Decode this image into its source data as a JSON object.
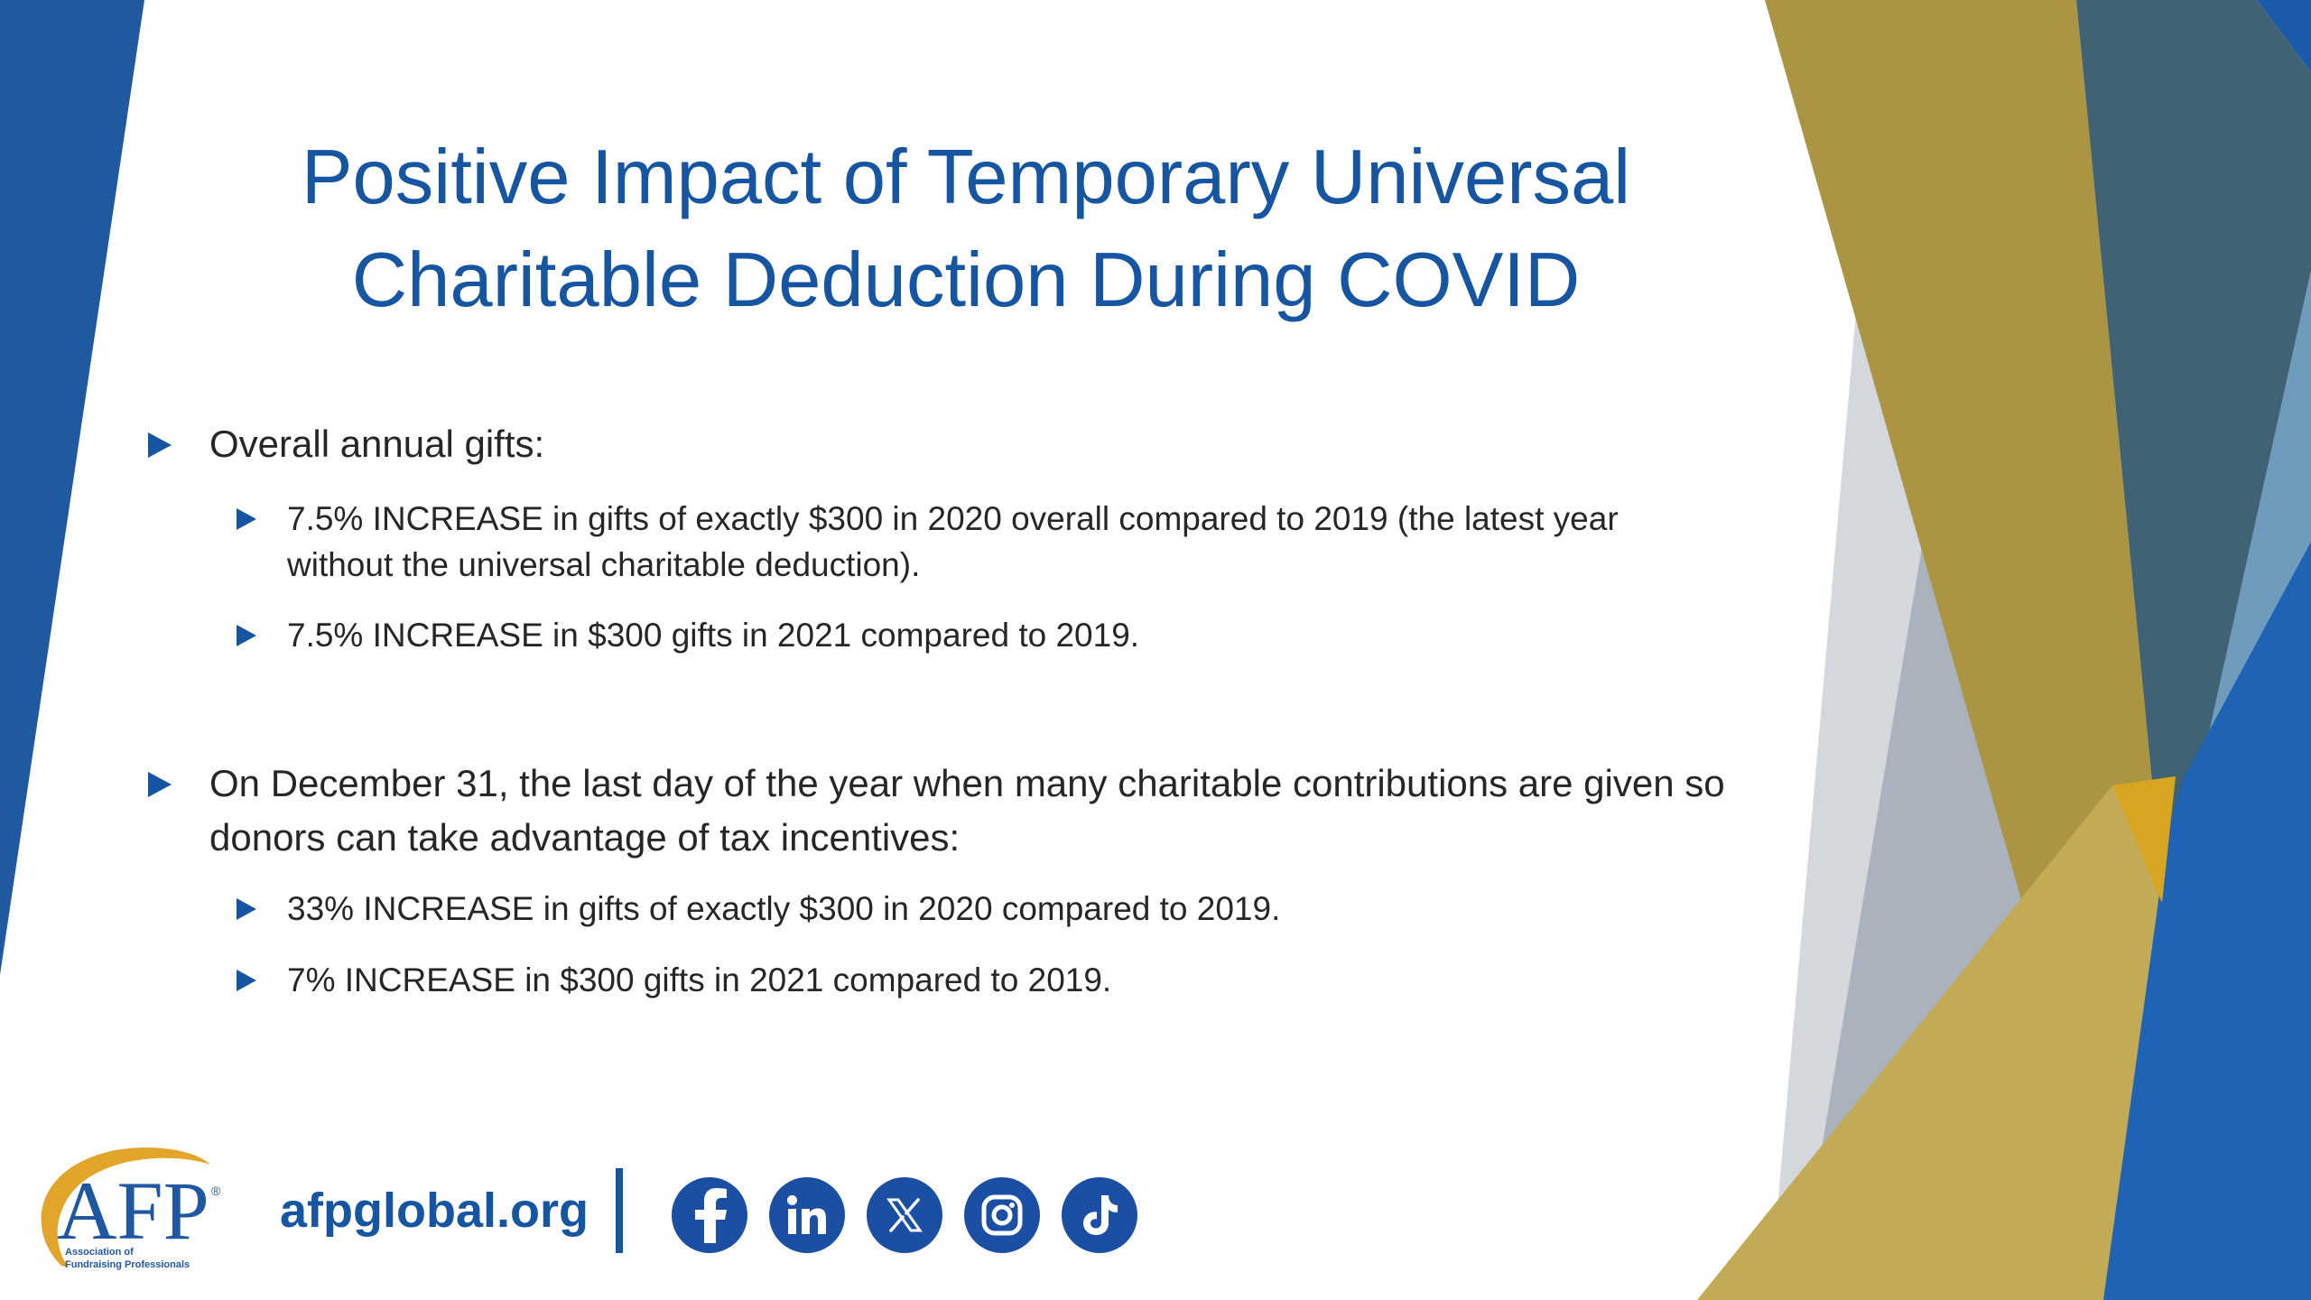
{
  "slide": {
    "title_lines": [
      "Positive Impact of Temporary Universal",
      "Charitable Deduction During COVID"
    ],
    "bullets": [
      {
        "text": "Overall annual gifts:",
        "subs": [
          "7.5% INCREASE in gifts of exactly $300 in 2020 overall compared to 2019 (the latest year without the universal charitable deduction).",
          "7.5% INCREASE in $300 gifts in 2021 compared to 2019."
        ]
      },
      {
        "text": "On December 31, the last day of the year when many charitable contributions are given so donors can take advantage of tax incentives:",
        "subs": [
          "33% INCREASE in gifts of exactly $300 in 2020 compared to 2019.",
          "7% INCREASE in $300 gifts in 2021 compared to 2019."
        ]
      }
    ]
  },
  "footer": {
    "logo_text": "AFP",
    "logo_registered": "®",
    "logo_subtitle_line1": "Association of",
    "logo_subtitle_line2": "Fundraising Professionals",
    "website": "afpglobal.org",
    "social_icons": [
      "facebook-icon",
      "linkedin-icon",
      "x-icon",
      "instagram-icon",
      "tiktok-icon"
    ]
  },
  "colors": {
    "title_blue": "#1655a2",
    "gold": "#b49a3f",
    "text": "#262626"
  }
}
